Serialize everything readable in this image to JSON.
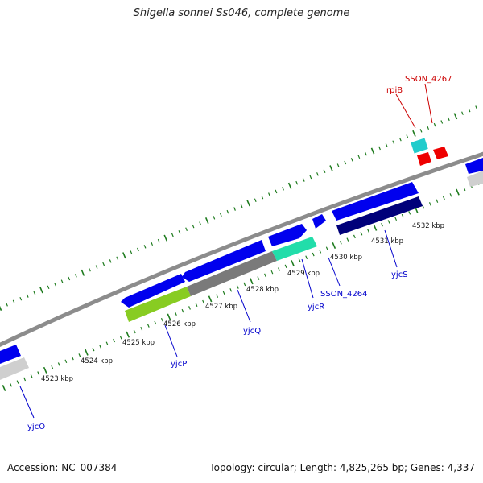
{
  "title": "Shigella sonnei Ss046, complete genome",
  "accession": "Accession: NC_007384",
  "summary": "Topology: circular; Length: 4,825,265 bp; Genes: 4,337",
  "colors": {
    "backbone": "#8c8c8c",
    "tick": "#1e7b1e",
    "cds_forward": "#0000ee",
    "cds_reverse_dark": "#00007a",
    "gene_grey": "#7a7a7a",
    "gene_light_grey": "#cfcfcf",
    "gene_lime": "#88cc22",
    "gene_teal": "#22ddaa",
    "gene_cyan": "#22cccc",
    "gene_red": "#ee0000",
    "gene_label": "#0000cc",
    "gene_label_red": "#cc0000"
  },
  "kbp_labels": [
    "4523 kbp",
    "4524 kbp",
    "4525 kbp",
    "4526 kbp",
    "4527 kbp",
    "4528 kbp",
    "4529 kbp",
    "4530 kbp",
    "4531 kbp",
    "4532 kbp"
  ],
  "gene_labels": [
    "yjcO",
    "yjcP",
    "yjcQ",
    "yjcR",
    "SSON_4264",
    "yjcS",
    "rpiB",
    "SSON_4267"
  ]
}
